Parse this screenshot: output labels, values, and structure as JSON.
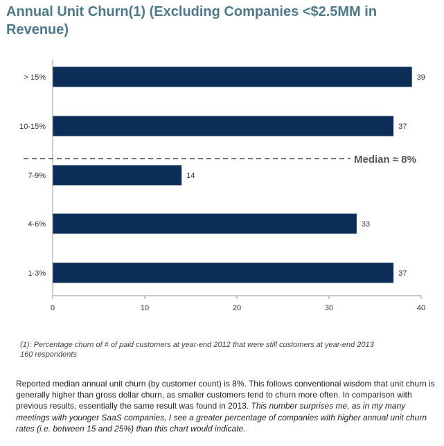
{
  "title": "Annual Unit Churn(1) (Excluding Companies <$2.5MM in Revenue)",
  "chart_data": {
    "type": "bar",
    "orientation": "horizontal",
    "categories": [
      "> 15%",
      "10-15%",
      "7-9%",
      "4-6%",
      "1-3%"
    ],
    "values": [
      39,
      37,
      14,
      33,
      37
    ],
    "xlim": [
      0,
      40
    ],
    "xticks": [
      0,
      10,
      20,
      30,
      40
    ],
    "grid": false,
    "bar_color": "#0b2d57",
    "median_label": "Median ≈ 8%"
  },
  "footnote": {
    "line1": "(1): Percentage churn of # of paid customers at year-end 2012 that were still customers at year-end 2013",
    "line2": "160 respondents"
  },
  "commentary": {
    "normal": "Reported median annual unit churn (by customer count) is 8%. This follows conventional wisdom that unit churn is generally higher than gross dollar churn, as smaller customers tend to churn more often. In comparison with previous results, essentially the same result was found in 2013. ",
    "italic": "This number surprises me, as in my many meetings with younger SaaS companies, I see a greater percentage of companies with higher annual unit churn rates (i.e. between 15 and 25%) than this chart would indicate."
  }
}
